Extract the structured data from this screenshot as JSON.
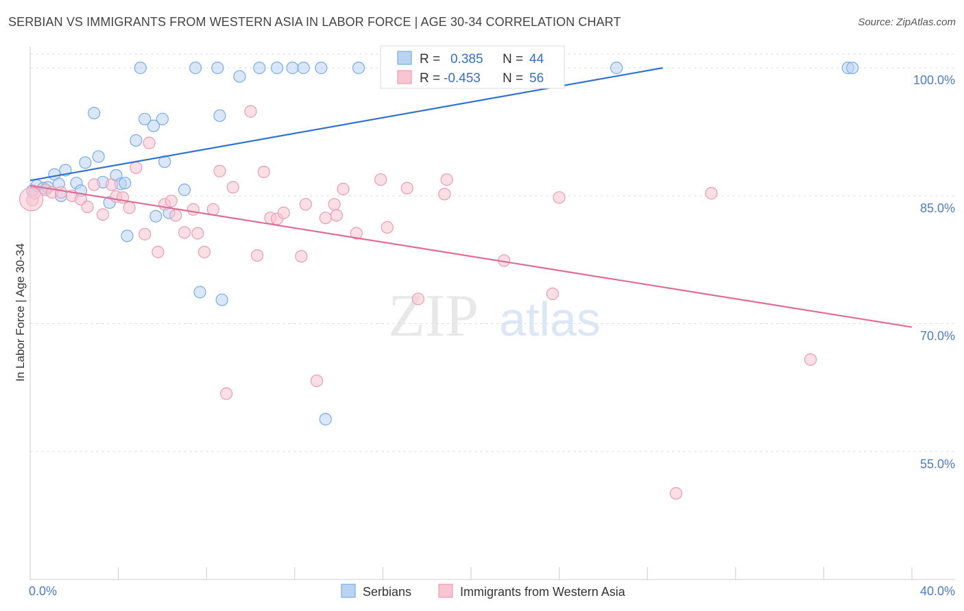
{
  "header": {
    "title": "SERBIAN VS IMMIGRANTS FROM WESTERN ASIA IN LABOR FORCE | AGE 30-34 CORRELATION CHART",
    "source": "Source: ZipAtlas.com"
  },
  "watermark": {
    "part1": "ZIP",
    "part2": "atlas"
  },
  "chart_data": {
    "type": "scatter",
    "title": "SERBIAN VS IMMIGRANTS FROM WESTERN ASIA IN LABOR FORCE | AGE 30-34 CORRELATION CHART",
    "ylabel": "In Labor Force | Age 30-34",
    "xlim": [
      0,
      40
    ],
    "ylim": [
      40,
      102.5
    ],
    "x_tick_labels": [
      "0.0%",
      "40.0%"
    ],
    "y_ticks": [
      {
        "value": 100,
        "label": "100.0%"
      },
      {
        "value": 85,
        "label": "85.0%"
      },
      {
        "value": 70,
        "label": "70.0%"
      },
      {
        "value": 55,
        "label": "55.0%"
      }
    ],
    "grid": true,
    "legend": [
      {
        "r_label": "R =",
        "r_value": "0.385",
        "n_label": "N =",
        "n_value": "44"
      },
      {
        "r_label": "R =",
        "r_value": "-0.453",
        "n_label": "N =",
        "n_value": "56"
      }
    ],
    "series": [
      {
        "name": "Serbians",
        "color": "#7aaae8",
        "fill": "#b9d3f3",
        "trend": {
          "x0": 0,
          "y0": 86.8,
          "x1": 40,
          "y1": 105.2,
          "color": "#2f72d0"
        },
        "points": [
          [
            0.1,
            85.6
          ],
          [
            0.3,
            86.2
          ],
          [
            0.6,
            85.9
          ],
          [
            0.8,
            86.0
          ],
          [
            1.1,
            87.5
          ],
          [
            1.3,
            86.4
          ],
          [
            1.4,
            85.0
          ],
          [
            1.6,
            88.0
          ],
          [
            2.1,
            86.5
          ],
          [
            2.3,
            85.6
          ],
          [
            2.5,
            88.9
          ],
          [
            2.9,
            94.7
          ],
          [
            3.1,
            89.6
          ],
          [
            3.3,
            86.6
          ],
          [
            3.6,
            84.2
          ],
          [
            3.9,
            87.4
          ],
          [
            4.1,
            86.4
          ],
          [
            4.3,
            86.5
          ],
          [
            4.4,
            80.3
          ],
          [
            4.8,
            91.5
          ],
          [
            5.0,
            100.0
          ],
          [
            5.2,
            94.0
          ],
          [
            5.6,
            93.2
          ],
          [
            5.7,
            82.6
          ],
          [
            6.0,
            94.0
          ],
          [
            6.1,
            89.0
          ],
          [
            6.3,
            83.0
          ],
          [
            7.0,
            85.7
          ],
          [
            7.5,
            100.0
          ],
          [
            7.7,
            73.7
          ],
          [
            8.5,
            100.0
          ],
          [
            8.6,
            94.4
          ],
          [
            8.7,
            72.8
          ],
          [
            9.5,
            99.0
          ],
          [
            10.4,
            100.0
          ],
          [
            11.2,
            100.0
          ],
          [
            11.9,
            100.0
          ],
          [
            12.4,
            100.0
          ],
          [
            13.2,
            100.0
          ],
          [
            13.4,
            58.8
          ],
          [
            14.9,
            100.0
          ],
          [
            26.6,
            100.0
          ],
          [
            37.1,
            100.0
          ],
          [
            37.3,
            100.0
          ]
        ]
      },
      {
        "name": "Immigrants from Western Asia",
        "color": "#ee9ab3",
        "fill": "#f8c5d3",
        "trend": {
          "x0": 0,
          "y0": 86.2,
          "x1": 40,
          "y1": 69.6,
          "color": "#e06b93"
        },
        "points": [
          [
            0.1,
            84.5
          ],
          [
            0.2,
            85.3
          ],
          [
            0.7,
            85.7
          ],
          [
            1.0,
            85.4
          ],
          [
            1.4,
            85.4
          ],
          [
            1.9,
            85.0
          ],
          [
            2.3,
            84.6
          ],
          [
            2.6,
            83.7
          ],
          [
            2.9,
            86.3
          ],
          [
            3.3,
            82.8
          ],
          [
            3.7,
            86.3
          ],
          [
            3.9,
            84.9
          ],
          [
            4.2,
            84.8
          ],
          [
            4.5,
            83.6
          ],
          [
            4.8,
            88.3
          ],
          [
            5.2,
            80.5
          ],
          [
            5.4,
            91.2
          ],
          [
            5.8,
            78.4
          ],
          [
            6.1,
            84.0
          ],
          [
            6.4,
            84.4
          ],
          [
            6.6,
            82.7
          ],
          [
            7.0,
            80.7
          ],
          [
            7.4,
            83.4
          ],
          [
            7.6,
            80.6
          ],
          [
            7.9,
            78.4
          ],
          [
            8.3,
            83.4
          ],
          [
            8.6,
            87.9
          ],
          [
            8.9,
            61.8
          ],
          [
            9.2,
            86.0
          ],
          [
            10.0,
            94.9
          ],
          [
            10.3,
            78.0
          ],
          [
            10.6,
            87.8
          ],
          [
            10.9,
            82.4
          ],
          [
            11.2,
            82.3
          ],
          [
            11.5,
            83.0
          ],
          [
            12.3,
            77.9
          ],
          [
            12.5,
            84.0
          ],
          [
            13.0,
            63.3
          ],
          [
            13.4,
            82.4
          ],
          [
            13.8,
            84.0
          ],
          [
            13.9,
            82.7
          ],
          [
            14.2,
            85.8
          ],
          [
            14.8,
            80.6
          ],
          [
            15.9,
            86.9
          ],
          [
            16.2,
            81.3
          ],
          [
            17.1,
            85.9
          ],
          [
            17.6,
            72.9
          ],
          [
            18.8,
            85.2
          ],
          [
            18.9,
            86.9
          ],
          [
            21.5,
            77.4
          ],
          [
            23.7,
            73.5
          ],
          [
            24.0,
            84.8
          ],
          [
            29.3,
            50.1
          ],
          [
            30.9,
            85.3
          ],
          [
            35.4,
            65.8
          ],
          [
            0.05,
            84.6
          ]
        ]
      }
    ]
  },
  "bottom_legend": [
    "Serbians",
    "Immigrants from Western Asia"
  ]
}
